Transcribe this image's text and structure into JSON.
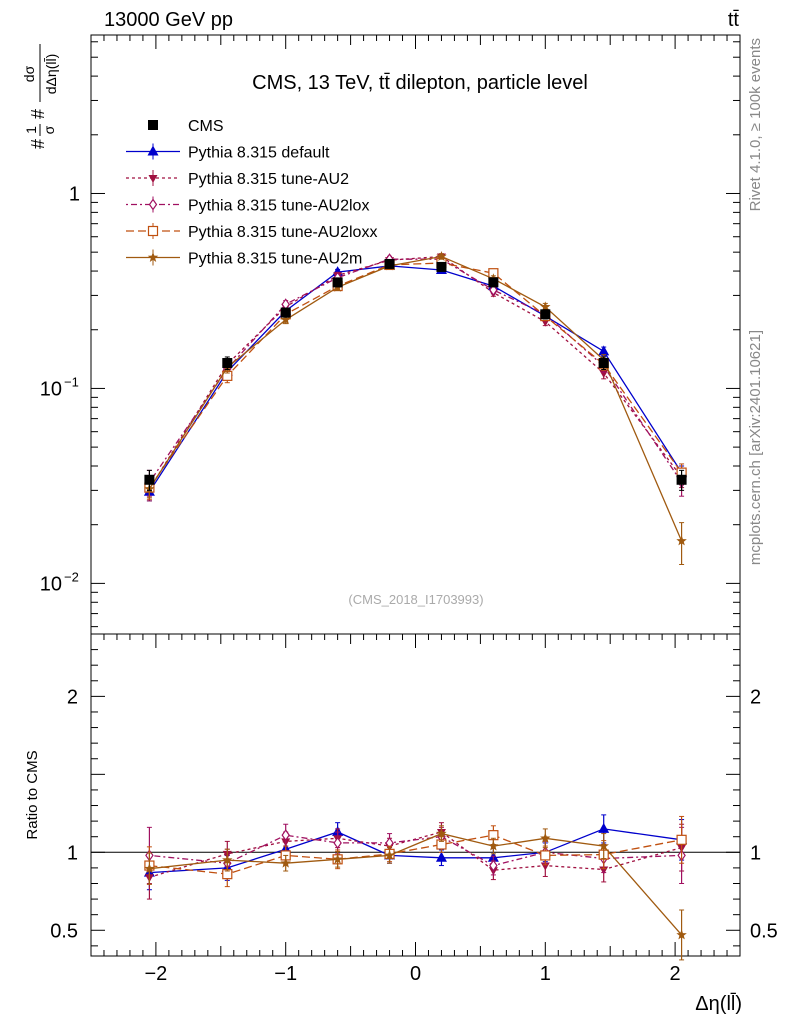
{
  "header": {
    "left_label": "13000 GeV pp",
    "right_label": "tt̄"
  },
  "side_labels": {
    "rivet": "Rivet 4.1.0, ≥ 100k events",
    "mcplots": "mcplots.cern.ch [arXiv:2401.10621]"
  },
  "chart_data": [
    {
      "type": "line",
      "title": "CMS, 13 TeV, tt̄ dilepton, particle level",
      "watermark": "(CMS_2018_I1703993)",
      "ylabel": "#1/σ # dσ/dΔη(ll̄)",
      "ylabel_parts": {
        "prefix": "#",
        "frac1_num": "1",
        "frac1_den": "σ",
        "mid": "#",
        "frac2_num": "dσ",
        "frac2_den": "dΔη(ll̄)"
      },
      "xlabel": "Δη(ll̄)",
      "yscale": "log",
      "ylim": [
        0.0055,
        6.5
      ],
      "xlim": [
        -2.5,
        2.5
      ],
      "yticks": [
        {
          "value": 0.01,
          "label": "10",
          "exp": "−2"
        },
        {
          "value": 0.1,
          "label": "10",
          "exp": "−1"
        },
        {
          "value": 1,
          "label": "1",
          "exp": ""
        }
      ],
      "x": [
        -2.05,
        -1.45,
        -1.0,
        -0.6,
        -0.2,
        0.2,
        0.6,
        1.0,
        1.45,
        2.05
      ],
      "series": [
        {
          "name": "CMS",
          "color": "#000000",
          "marker": "square",
          "dash": "none",
          "values": [
            0.034,
            0.135,
            0.245,
            0.35,
            0.435,
            0.42,
            0.35,
            0.24,
            0.135,
            0.034
          ],
          "errors": [
            0.004,
            0.01,
            0.013,
            0.018,
            0.02,
            0.02,
            0.018,
            0.013,
            0.01,
            0.004
          ]
        },
        {
          "name": "Pythia 8.315 default",
          "color": "#0000cc",
          "marker": "triangle-up",
          "dash": "none",
          "values": [
            0.0295,
            0.122,
            0.25,
            0.395,
            0.425,
            0.405,
            0.335,
            0.235,
            0.155,
            0.037
          ],
          "errors": [
            0.003,
            0.007,
            0.01,
            0.013,
            0.014,
            0.014,
            0.013,
            0.01,
            0.008,
            0.003
          ]
        },
        {
          "name": "Pythia 8.315 tune-AU2",
          "color": "#a01040",
          "marker": "triangle-down",
          "dash": "3,3",
          "values": [
            0.0305,
            0.133,
            0.262,
            0.38,
            0.455,
            0.475,
            0.31,
            0.22,
            0.12,
            0.035
          ],
          "errors": [
            0.004,
            0.009,
            0.011,
            0.014,
            0.016,
            0.016,
            0.013,
            0.01,
            0.008,
            0.004
          ]
        },
        {
          "name": "Pythia 8.315 tune-AU2lox",
          "color": "#a01060",
          "marker": "diamond-open",
          "dash": "2,3,6,3",
          "values": [
            0.033,
            0.126,
            0.27,
            0.37,
            0.46,
            0.46,
            0.32,
            0.24,
            0.13,
            0.033
          ],
          "errors": [
            0.005,
            0.01,
            0.012,
            0.015,
            0.016,
            0.016,
            0.014,
            0.012,
            0.009,
            0.005
          ]
        },
        {
          "name": "Pythia 8.315 tune-AU2loxx",
          "color": "#c05010",
          "marker": "square-open",
          "dash": "8,4",
          "values": [
            0.031,
            0.116,
            0.24,
            0.335,
            0.43,
            0.44,
            0.39,
            0.235,
            0.133,
            0.037
          ],
          "errors": [
            0.004,
            0.009,
            0.011,
            0.014,
            0.015,
            0.015,
            0.014,
            0.011,
            0.009,
            0.004
          ]
        },
        {
          "name": "Pythia 8.315 tune-AU2m",
          "color": "#a05a10",
          "marker": "star",
          "dash": "none",
          "values": [
            0.0305,
            0.128,
            0.225,
            0.33,
            0.425,
            0.475,
            0.365,
            0.262,
            0.14,
            0.0165
          ],
          "errors": [
            0.003,
            0.008,
            0.01,
            0.012,
            0.014,
            0.015,
            0.013,
            0.011,
            0.009,
            0.004
          ]
        }
      ]
    },
    {
      "type": "line",
      "title": "",
      "ylabel": "Ratio to CMS",
      "xlabel": "Δη(ll̄)",
      "yscale": "linear",
      "ylim": [
        0.335,
        2.4
      ],
      "xlim": [
        -2.5,
        2.5
      ],
      "yticks": [
        {
          "value": 0.5,
          "label": "0.5"
        },
        {
          "value": 1,
          "label": "1"
        },
        {
          "value": 2,
          "label": "2"
        }
      ],
      "xticks": [
        {
          "value": -2,
          "label": "−2"
        },
        {
          "value": -1,
          "label": "−1"
        },
        {
          "value": 0,
          "label": "0"
        },
        {
          "value": 1,
          "label": "1"
        },
        {
          "value": 2,
          "label": "2"
        }
      ],
      "x": [
        -2.05,
        -1.45,
        -1.0,
        -0.6,
        -0.2,
        0.2,
        0.6,
        1.0,
        1.45,
        2.05
      ],
      "series": [
        {
          "name": "Pythia 8.315 default",
          "color": "#0000cc",
          "marker": "triangle-up",
          "dash": "none",
          "values": [
            0.87,
            0.9,
            1.02,
            1.13,
            0.98,
            0.965,
            0.965,
            1.0,
            1.15,
            1.08
          ],
          "errors": [
            0.11,
            0.08,
            0.06,
            0.06,
            0.05,
            0.05,
            0.06,
            0.06,
            0.09,
            0.13
          ]
        },
        {
          "name": "Pythia 8.315 tune-AU2",
          "color": "#a01040",
          "marker": "triangle-down",
          "dash": "3,3",
          "values": [
            0.84,
            0.99,
            1.07,
            1.09,
            1.04,
            1.13,
            0.885,
            0.915,
            0.89,
            1.03
          ],
          "errors": [
            0.14,
            0.08,
            0.06,
            0.06,
            0.05,
            0.06,
            0.06,
            0.07,
            0.08,
            0.15
          ]
        },
        {
          "name": "Pythia 8.315 tune-AU2lox",
          "color": "#a01060",
          "marker": "diamond-open",
          "dash": "2,3,6,3",
          "values": [
            0.98,
            0.93,
            1.11,
            1.06,
            1.06,
            1.1,
            0.915,
            1.0,
            0.96,
            0.98
          ],
          "errors": [
            0.18,
            0.09,
            0.07,
            0.07,
            0.06,
            0.06,
            0.06,
            0.07,
            0.09,
            0.18
          ]
        },
        {
          "name": "Pythia 8.315 tune-AU2loxx",
          "color": "#c05010",
          "marker": "square-open",
          "dash": "8,4",
          "values": [
            0.915,
            0.86,
            0.98,
            0.955,
            0.99,
            1.05,
            1.11,
            0.98,
            0.985,
            1.08
          ],
          "errors": [
            0.12,
            0.08,
            0.06,
            0.06,
            0.05,
            0.05,
            0.06,
            0.06,
            0.09,
            0.15
          ]
        },
        {
          "name": "Pythia 8.315 tune-AU2m",
          "color": "#a05a10",
          "marker": "star",
          "dash": "none",
          "values": [
            0.895,
            0.95,
            0.93,
            0.955,
            0.98,
            1.12,
            1.04,
            1.09,
            1.04,
            0.47
          ],
          "errors": [
            0.1,
            0.07,
            0.05,
            0.05,
            0.05,
            0.05,
            0.05,
            0.06,
            0.08,
            0.16
          ]
        }
      ],
      "reference_line": 1
    }
  ]
}
